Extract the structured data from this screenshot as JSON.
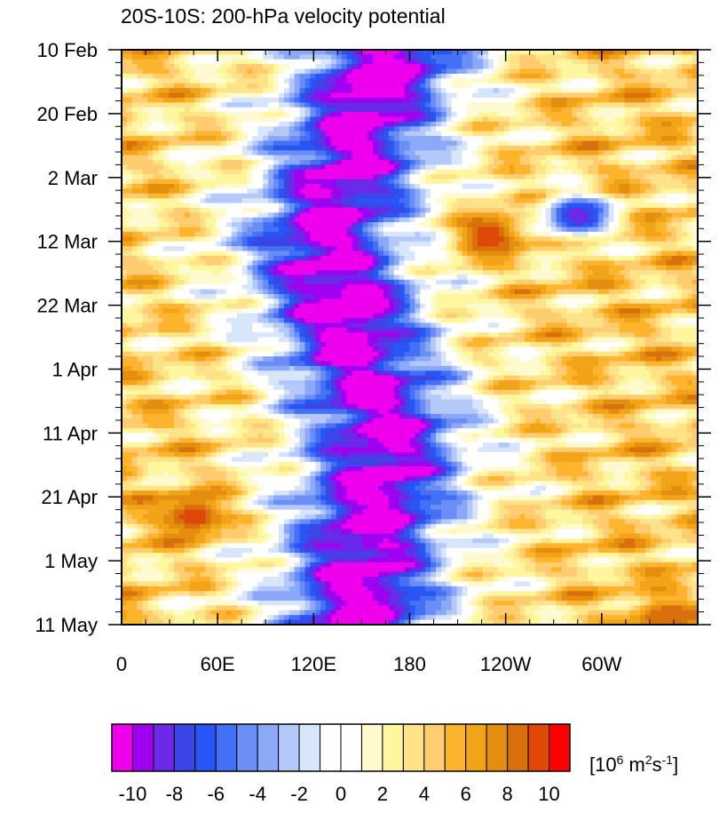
{
  "chart_data": {
    "type": "heatmap",
    "title": "20S-10S: 200-hPa velocity potential",
    "x_ticks": [
      "0",
      "60E",
      "120E",
      "180",
      "120W",
      "60W"
    ],
    "y_ticks": [
      "10 Feb",
      "20 Feb",
      "2 Mar",
      "12 Mar",
      "22 Mar",
      "1 Apr",
      "11 Apr",
      "21 Apr",
      "1 May",
      "11 May"
    ],
    "x_tick_values": [
      0,
      60,
      120,
      180,
      240,
      300
    ],
    "y_tick_values": [
      0,
      10,
      20,
      30,
      40,
      50,
      60,
      70,
      80,
      90
    ],
    "xlim": [
      0,
      360
    ],
    "ylim": [
      0,
      90
    ],
    "y_axis_reversed": true,
    "colorbar": {
      "unit_label": "[10^6 m^2 s^-1]",
      "tick_labels": [
        "-10",
        "-8",
        "-6",
        "-4",
        "-2",
        "0",
        "2",
        "4",
        "6",
        "8",
        "10"
      ],
      "tick_values": [
        -10,
        -8,
        -6,
        -4,
        -2,
        0,
        2,
        4,
        6,
        8,
        10
      ],
      "colors": [
        "#ee00ee",
        "#a000f0",
        "#6a28e8",
        "#3c46e6",
        "#2855f5",
        "#4470f5",
        "#6a8ef6",
        "#8ca8f8",
        "#b4c8fa",
        "#d8e6fc",
        "#ffffff",
        "#ffffff",
        "#fffad0",
        "#fff7a0",
        "#ffe388",
        "#ffcc70",
        "#ffb42e",
        "#f2a418",
        "#e48e10",
        "#d8700c",
        "#e04808",
        "#ff0000"
      ]
    },
    "features": [
      {
        "lon": 160,
        "day": 5,
        "value": -11
      },
      {
        "lon": 150,
        "day": 40,
        "value": -11
      },
      {
        "lon": 155,
        "day": 70,
        "value": -10
      },
      {
        "lon": 150,
        "day": 85,
        "value": -10
      },
      {
        "lon": 230,
        "day": 29,
        "value": 10
      },
      {
        "lon": 45,
        "day": 73,
        "value": 10
      },
      {
        "lon": 340,
        "day": 89,
        "value": 9
      },
      {
        "lon": 285,
        "day": 26,
        "value": -9
      }
    ]
  }
}
